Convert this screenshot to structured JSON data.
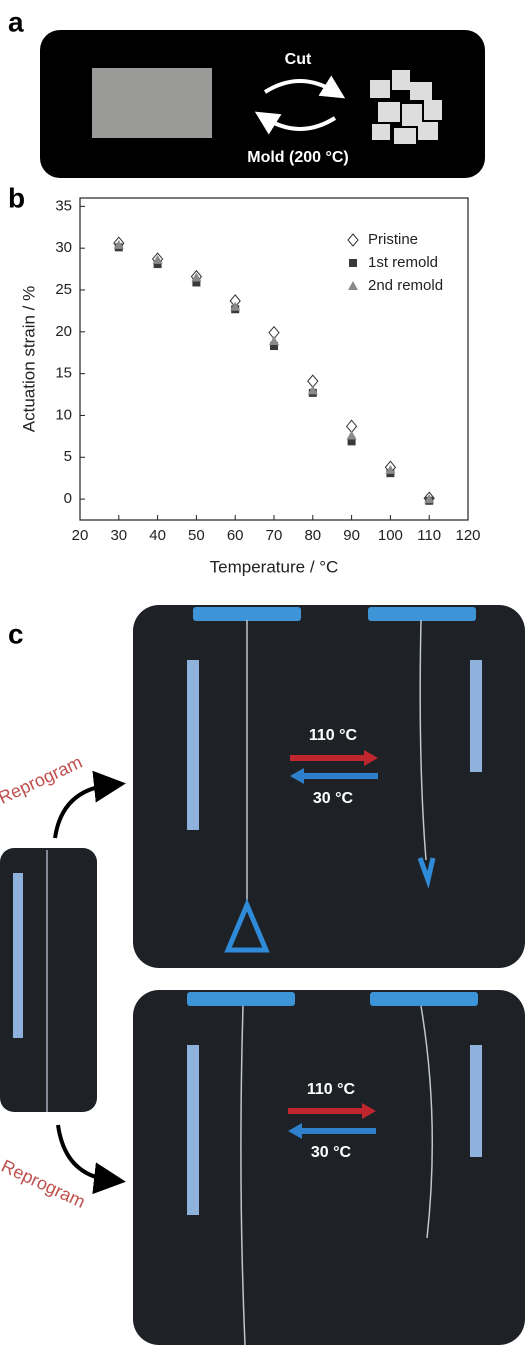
{
  "panels": {
    "a": {
      "label": "a",
      "top_text": "Cut",
      "bottom_text": "Mold (200 °C)"
    },
    "b": {
      "label": "b"
    },
    "c": {
      "label": "c",
      "top": {
        "reprogram": "Reprogram",
        "hot": "110 °C",
        "cold": "30 °C"
      },
      "bottom": {
        "reprogram": "Reprogram",
        "hot": "110 °C",
        "cold": "30 °C"
      }
    }
  },
  "chart_data": {
    "type": "scatter",
    "x_label": "Temperature / °C",
    "y_label": "Actuation strain / %",
    "x": [
      30,
      40,
      50,
      60,
      70,
      80,
      90,
      100,
      110
    ],
    "series": [
      {
        "name": "Pristine",
        "color": "#333333",
        "marker": "diamond",
        "values": [
          30.6,
          28.7,
          26.6,
          23.7,
          19.9,
          14.1,
          8.7,
          3.8,
          0.1
        ]
      },
      {
        "name": "1st remold",
        "color": "#3a3a3a",
        "marker": "square",
        "values": [
          30.1,
          28.1,
          25.9,
          22.7,
          18.3,
          12.7,
          6.9,
          3.1,
          -0.2
        ]
      },
      {
        "name": "2nd remold",
        "color": "#8a8a8a",
        "marker": "triangle",
        "values": [
          30.4,
          28.6,
          26.5,
          23.0,
          18.9,
          13.0,
          7.6,
          3.5,
          0.0
        ]
      }
    ],
    "xlim": [
      20,
      120
    ],
    "xticks": [
      20,
      30,
      40,
      50,
      60,
      70,
      80,
      90,
      100,
      110,
      120
    ],
    "ylim": [
      -2.5,
      36
    ],
    "yticks": [
      0,
      5,
      10,
      15,
      20,
      25,
      30,
      35
    ],
    "legend": "upper right"
  }
}
